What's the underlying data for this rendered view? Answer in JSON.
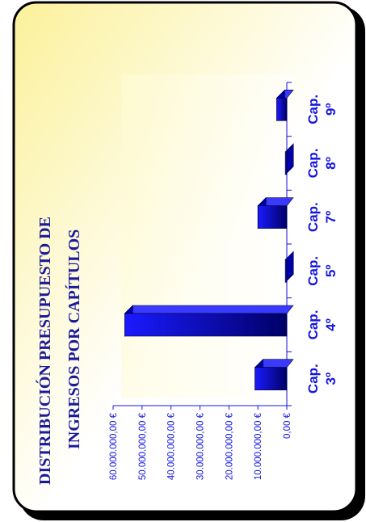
{
  "colors": {
    "panel_gradient_start": "#fbf19a",
    "panel_gradient_end": "#ffffff",
    "frame_border": "#000000",
    "bar_dark": "#000066",
    "bar_light": "#1a1aff",
    "text_blue": "#1515e0",
    "title_blue": "#1a1a9a"
  },
  "chart_data": {
    "type": "bar",
    "title": [
      "DISTRIBUCIÓN PRESUPUESTO DE",
      "INGRESOS POR CAPÍTULOS"
    ],
    "categories": [
      [
        "Cap.",
        "3º"
      ],
      [
        "Cap.",
        "4º"
      ],
      [
        "Cap.",
        "5º"
      ],
      [
        "Cap.",
        "7º"
      ],
      [
        "Cap.",
        "8º"
      ],
      [
        "Cap.",
        "9º"
      ]
    ],
    "values": [
      11000000,
      56000000,
      500000,
      10000000,
      500000,
      3500000
    ],
    "ylim": [
      0,
      60000000
    ],
    "yticks": [
      "0,00 €",
      "10.000.000,00 €",
      "20.000.000,00 €",
      "30.000.000,00 €",
      "40.000.000,00 €",
      "50.000.000,00 €",
      "60.000.000,00 €"
    ],
    "grid": false,
    "three_d": true
  }
}
